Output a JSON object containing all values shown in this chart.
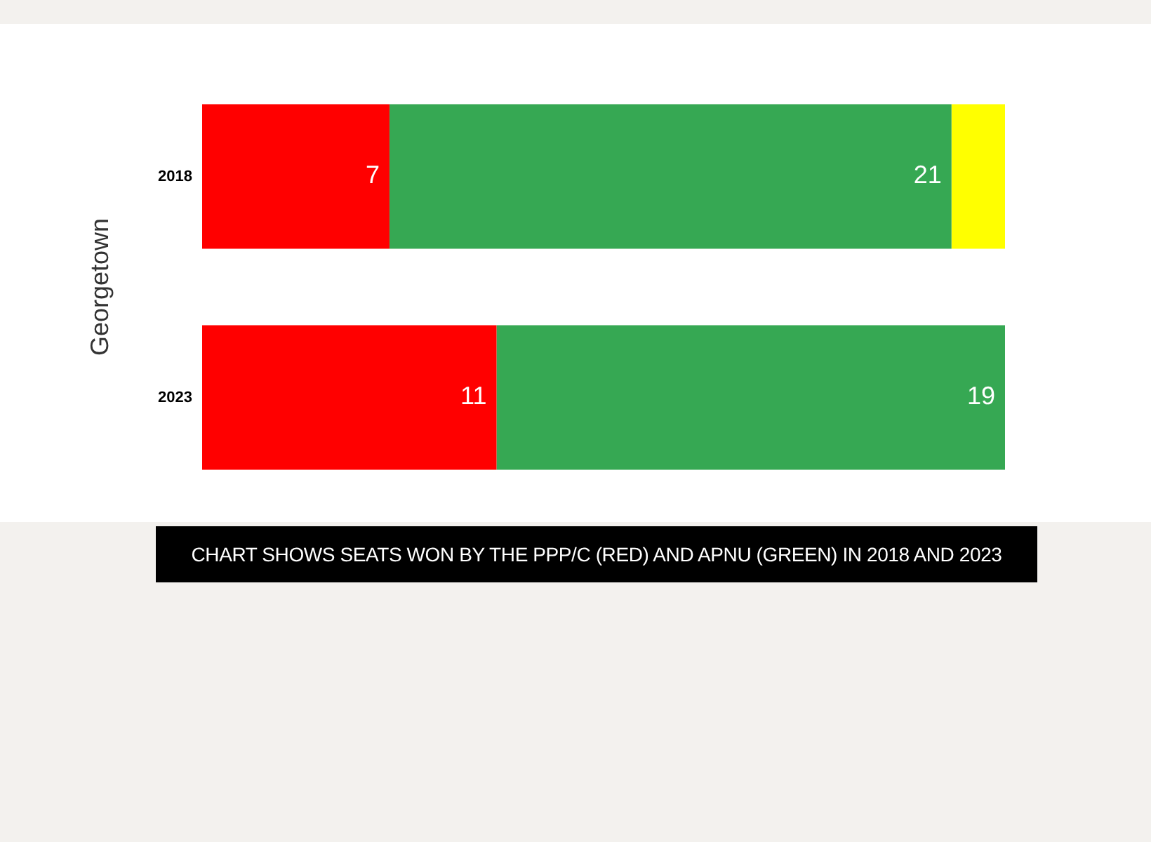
{
  "chart_data": {
    "type": "bar",
    "orientation": "horizontal",
    "stacked": true,
    "ylabel": "Georgetown",
    "categories": [
      "2018",
      "2023"
    ],
    "series": [
      {
        "color": "#ff0000",
        "values": [
          7,
          11
        ],
        "value_labels": [
          "7",
          "11"
        ]
      },
      {
        "color": "#36a853",
        "values": [
          21,
          19
        ],
        "value_labels": [
          "21",
          "19"
        ]
      },
      {
        "color": "#ffff00",
        "values": [
          2,
          null
        ],
        "value_labels": [
          null,
          null
        ]
      }
    ],
    "tick_labels": "y",
    "annotations": [
      "CHART SHOWS SEATS WON BY THE PPP/C (RED) AND APNU (GREEN) IN 2018 AND 2023"
    ]
  }
}
